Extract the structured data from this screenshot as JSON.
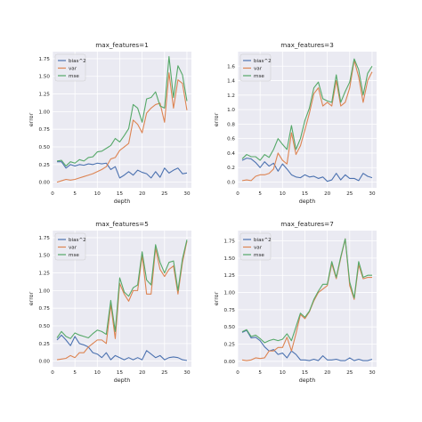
{
  "figure": {
    "background": "#ffffff",
    "axes_background": "#eaeaf2",
    "grid_color": "#ffffff",
    "series_colors": [
      "#4c72b0",
      "#dd8452",
      "#55a868"
    ]
  },
  "chart_data": [
    {
      "type": "line",
      "title": "max_features=1",
      "xlabel": "depth",
      "ylabel": "error",
      "xlim": [
        0,
        31
      ],
      "ylim": [
        -0.08,
        1.85
      ],
      "xticks": [
        0,
        5,
        10,
        15,
        20,
        25,
        30
      ],
      "xtick_labels": [
        "0",
        "5",
        "10",
        "15",
        "20",
        "25",
        "30"
      ],
      "yticks": [
        0.0,
        0.25,
        0.5,
        0.75,
        1.0,
        1.25,
        1.5,
        1.75
      ],
      "ytick_labels": [
        "0.00",
        "0.25",
        "0.50",
        "0.75",
        "1.00",
        "1.25",
        "1.50",
        "1.75"
      ],
      "grid": true,
      "legend": "top-left",
      "x": [
        1,
        2,
        3,
        4,
        5,
        6,
        7,
        8,
        9,
        10,
        11,
        12,
        13,
        14,
        15,
        16,
        17,
        18,
        19,
        20,
        21,
        22,
        23,
        24,
        25,
        26,
        27,
        28,
        29,
        30
      ],
      "series": [
        {
          "name": "bias^2",
          "values": [
            0.29,
            0.29,
            0.2,
            0.25,
            0.23,
            0.25,
            0.24,
            0.26,
            0.25,
            0.27,
            0.26,
            0.27,
            0.18,
            0.22,
            0.06,
            0.1,
            0.15,
            0.1,
            0.17,
            0.14,
            0.12,
            0.06,
            0.15,
            0.07,
            0.2,
            0.13,
            0.17,
            0.2,
            0.12,
            0.13
          ]
        },
        {
          "name": "var",
          "values": [
            0.0,
            0.02,
            0.04,
            0.03,
            0.04,
            0.06,
            0.08,
            0.1,
            0.12,
            0.15,
            0.18,
            0.22,
            0.33,
            0.35,
            0.45,
            0.5,
            0.55,
            0.88,
            0.82,
            0.7,
            0.98,
            1.05,
            1.1,
            1.12,
            0.85,
            1.55,
            1.05,
            1.45,
            1.4,
            1.02
          ]
        },
        {
          "name": "mse",
          "values": [
            0.3,
            0.31,
            0.23,
            0.29,
            0.27,
            0.32,
            0.3,
            0.35,
            0.36,
            0.43,
            0.44,
            0.48,
            0.52,
            0.62,
            0.57,
            0.66,
            0.76,
            1.1,
            1.05,
            0.85,
            1.18,
            1.2,
            1.28,
            1.08,
            1.05,
            1.78,
            1.2,
            1.65,
            1.52,
            1.15
          ]
        }
      ]
    },
    {
      "type": "line",
      "title": "max_features=3",
      "xlabel": "depth",
      "ylabel": "error",
      "xlim": [
        0,
        31
      ],
      "ylim": [
        -0.08,
        1.8
      ],
      "xticks": [
        0,
        5,
        10,
        15,
        20,
        25,
        30
      ],
      "xtick_labels": [
        "0",
        "5",
        "10",
        "15",
        "20",
        "25",
        "30"
      ],
      "yticks": [
        0.0,
        0.2,
        0.4,
        0.6,
        0.8,
        1.0,
        1.2,
        1.4,
        1.6
      ],
      "ytick_labels": [
        "0.0",
        "0.2",
        "0.4",
        "0.6",
        "0.8",
        "1.0",
        "1.2",
        "1.4",
        "1.6"
      ],
      "grid": true,
      "legend": "top-left",
      "x": [
        1,
        2,
        3,
        4,
        5,
        6,
        7,
        8,
        9,
        10,
        11,
        12,
        13,
        14,
        15,
        16,
        17,
        18,
        19,
        20,
        21,
        22,
        23,
        24,
        25,
        26,
        27,
        28,
        29,
        30
      ],
      "series": [
        {
          "name": "bias^2",
          "values": [
            0.3,
            0.33,
            0.32,
            0.27,
            0.2,
            0.28,
            0.22,
            0.26,
            0.15,
            0.25,
            0.18,
            0.1,
            0.07,
            0.06,
            0.1,
            0.07,
            0.08,
            0.05,
            0.07,
            0.01,
            0.03,
            0.12,
            0.03,
            0.1,
            0.05,
            0.05,
            0.02,
            0.12,
            0.08,
            0.06
          ]
        },
        {
          "name": "var",
          "values": [
            0.02,
            0.03,
            0.02,
            0.08,
            0.1,
            0.1,
            0.12,
            0.18,
            0.4,
            0.3,
            0.25,
            0.68,
            0.38,
            0.5,
            0.72,
            0.95,
            1.22,
            1.3,
            1.05,
            1.1,
            1.05,
            1.4,
            1.05,
            1.1,
            1.3,
            1.68,
            1.45,
            1.1,
            1.4,
            1.52
          ]
        },
        {
          "name": "mse",
          "values": [
            0.32,
            0.38,
            0.35,
            0.35,
            0.3,
            0.38,
            0.34,
            0.45,
            0.6,
            0.52,
            0.45,
            0.78,
            0.45,
            0.6,
            0.85,
            1.02,
            1.3,
            1.38,
            1.15,
            1.12,
            1.1,
            1.48,
            1.1,
            1.25,
            1.38,
            1.7,
            1.55,
            1.2,
            1.5,
            1.6
          ]
        }
      ]
    },
    {
      "type": "line",
      "title": "max_features=5",
      "xlabel": "depth",
      "ylabel": "error",
      "xlim": [
        0,
        31
      ],
      "ylim": [
        -0.08,
        1.85
      ],
      "xticks": [
        0,
        5,
        10,
        15,
        20,
        25,
        30
      ],
      "xtick_labels": [
        "0",
        "5",
        "10",
        "15",
        "20",
        "25",
        "30"
      ],
      "yticks": [
        0.0,
        0.25,
        0.5,
        0.75,
        1.0,
        1.25,
        1.5,
        1.75
      ],
      "ytick_labels": [
        "0.00",
        "0.25",
        "0.50",
        "0.75",
        "1.00",
        "1.25",
        "1.50",
        "1.75"
      ],
      "grid": true,
      "legend": "top-left",
      "x": [
        1,
        2,
        3,
        4,
        5,
        6,
        7,
        8,
        9,
        10,
        11,
        12,
        13,
        14,
        15,
        16,
        17,
        18,
        19,
        20,
        21,
        22,
        23,
        24,
        25,
        26,
        27,
        28,
        29,
        30
      ],
      "series": [
        {
          "name": "bias^2",
          "values": [
            0.3,
            0.37,
            0.3,
            0.22,
            0.35,
            0.25,
            0.23,
            0.2,
            0.12,
            0.1,
            0.05,
            0.12,
            0.02,
            0.08,
            0.05,
            0.02,
            0.05,
            0.02,
            0.05,
            0.02,
            0.15,
            0.1,
            0.05,
            0.08,
            0.02,
            0.05,
            0.06,
            0.05,
            0.02,
            0.01
          ]
        },
        {
          "name": "var",
          "values": [
            0.02,
            0.03,
            0.04,
            0.08,
            0.05,
            0.12,
            0.12,
            0.2,
            0.25,
            0.3,
            0.3,
            0.25,
            0.8,
            0.32,
            1.1,
            0.95,
            0.85,
            1.0,
            1.0,
            1.5,
            0.95,
            0.95,
            1.6,
            1.3,
            1.2,
            1.3,
            1.35,
            0.95,
            1.4,
            1.7
          ]
        },
        {
          "name": "mse",
          "values": [
            0.33,
            0.42,
            0.35,
            0.32,
            0.4,
            0.37,
            0.35,
            0.33,
            0.39,
            0.44,
            0.42,
            0.38,
            0.86,
            0.42,
            1.18,
            0.98,
            0.92,
            1.04,
            1.08,
            1.55,
            1.15,
            1.08,
            1.65,
            1.4,
            1.25,
            1.4,
            1.42,
            1.0,
            1.45,
            1.72
          ]
        }
      ]
    },
    {
      "type": "line",
      "title": "max_features=7",
      "xlabel": "depth",
      "ylabel": "error",
      "xlim": [
        0,
        31
      ],
      "ylim": [
        -0.08,
        1.9
      ],
      "xticks": [
        0,
        5,
        10,
        15,
        20,
        25,
        30
      ],
      "xtick_labels": [
        "0",
        "5",
        "10",
        "15",
        "20",
        "25",
        "30"
      ],
      "yticks": [
        0.0,
        0.25,
        0.5,
        0.75,
        1.0,
        1.25,
        1.5,
        1.75
      ],
      "ytick_labels": [
        "0.00",
        "0.25",
        "0.50",
        "0.75",
        "1.00",
        "1.25",
        "1.50",
        "1.75"
      ],
      "grid": true,
      "legend": "top-left",
      "x": [
        1,
        2,
        3,
        4,
        5,
        6,
        7,
        8,
        9,
        10,
        11,
        12,
        13,
        14,
        15,
        16,
        17,
        18,
        19,
        20,
        21,
        22,
        23,
        24,
        25,
        26,
        27,
        28,
        29,
        30
      ],
      "series": [
        {
          "name": "bias^2",
          "values": [
            0.42,
            0.45,
            0.34,
            0.35,
            0.3,
            0.21,
            0.15,
            0.17,
            0.1,
            0.12,
            0.05,
            0.15,
            0.1,
            0.02,
            0.02,
            0.01,
            0.03,
            0.01,
            0.08,
            0.02,
            0.02,
            0.03,
            0.01,
            0.01,
            0.05,
            0.01,
            0.03,
            0.01,
            0.01,
            0.03
          ]
        },
        {
          "name": "var",
          "values": [
            0.02,
            0.01,
            0.02,
            0.05,
            0.04,
            0.05,
            0.15,
            0.15,
            0.2,
            0.2,
            0.35,
            0.15,
            0.4,
            0.68,
            0.62,
            0.72,
            0.88,
            1.0,
            1.05,
            1.1,
            1.42,
            1.2,
            1.5,
            1.78,
            1.1,
            0.9,
            1.4,
            1.2,
            1.22,
            1.22
          ]
        },
        {
          "name": "mse",
          "values": [
            0.43,
            0.46,
            0.36,
            0.38,
            0.33,
            0.27,
            0.3,
            0.32,
            0.3,
            0.32,
            0.4,
            0.3,
            0.5,
            0.7,
            0.64,
            0.73,
            0.9,
            1.02,
            1.12,
            1.12,
            1.45,
            1.22,
            1.52,
            1.78,
            1.15,
            0.92,
            1.45,
            1.22,
            1.25,
            1.25
          ]
        }
      ]
    }
  ]
}
